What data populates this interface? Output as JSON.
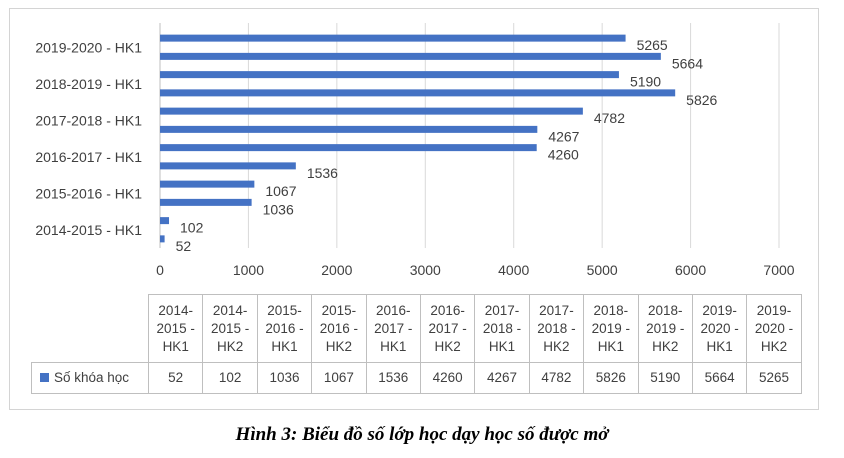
{
  "caption": "Hình 3: Biểu đồ số lớp học dạy học số được mở",
  "chart_data": {
    "type": "bar",
    "orientation": "horizontal",
    "categories": [
      "2014-2015 - HK1",
      "2014-2015 - HK2",
      "2015-2016 - HK1",
      "2015-2016 - HK2",
      "2016-2017 - HK1",
      "2016-2017 - HK2",
      "2017-2018 - HK1",
      "2017-2018 - HK2",
      "2018-2019 - HK1",
      "2018-2019 - HK2",
      "2019-2020 - HK1",
      "2019-2020 - HK2"
    ],
    "axis_labels": [
      "2014-2015 - HK1",
      "2015-2016 - HK1",
      "2016-2017 - HK1",
      "2017-2018 - HK1",
      "2018-2019 - HK1",
      "2019-2020 - HK1"
    ],
    "table_headers": [
      [
        "2014-",
        "2015 -",
        "HK1"
      ],
      [
        "2014-",
        "2015 -",
        "HK2"
      ],
      [
        "2015-",
        "2016 -",
        "HK1"
      ],
      [
        "2015-",
        "2016 -",
        "HK2"
      ],
      [
        "2016-",
        "2017 -",
        "HK1"
      ],
      [
        "2016-",
        "2017 -",
        "HK2"
      ],
      [
        "2017-",
        "2018 -",
        "HK1"
      ],
      [
        "2017-",
        "2018 -",
        "HK2"
      ],
      [
        "2018-",
        "2019 -",
        "HK1"
      ],
      [
        "2018-",
        "2019 -",
        "HK2"
      ],
      [
        "2019-",
        "2020 -",
        "HK1"
      ],
      [
        "2019-",
        "2020 -",
        "HK2"
      ]
    ],
    "series": [
      {
        "name": "Số khóa học",
        "color": "#4472c4",
        "values": [
          52,
          102,
          1036,
          1067,
          1536,
          4260,
          4267,
          4782,
          5826,
          5190,
          5664,
          5265
        ]
      }
    ],
    "xlim": [
      0,
      7000
    ],
    "xticks": [
      0,
      1000,
      2000,
      3000,
      4000,
      5000,
      6000,
      7000
    ],
    "grid": true,
    "data_labels": true,
    "data_table": true
  }
}
